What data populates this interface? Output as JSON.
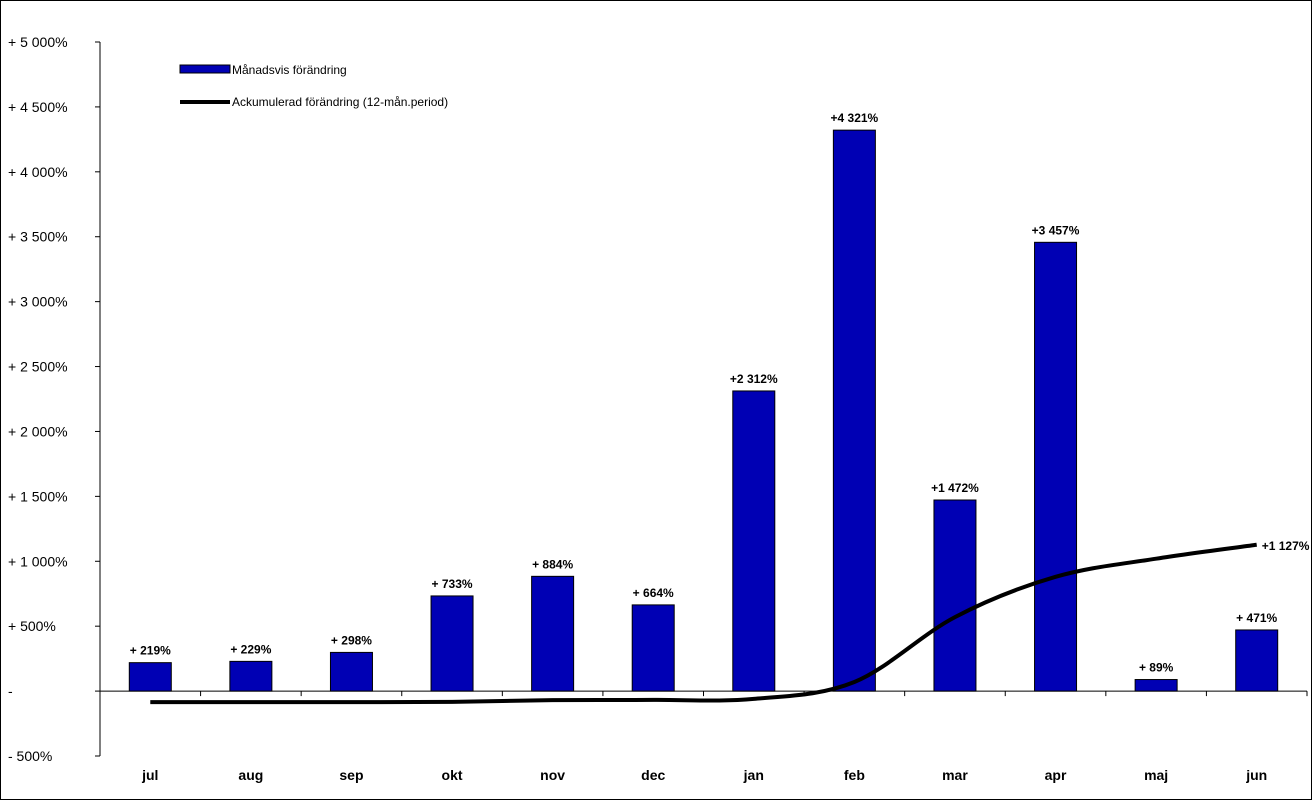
{
  "chart_data": {
    "type": "bar",
    "title": "",
    "xlabel": "",
    "ylabel": "",
    "categories": [
      "jul",
      "aug",
      "sep",
      "okt",
      "nov",
      "dec",
      "jan",
      "feb",
      "mar",
      "apr",
      "maj",
      "jun"
    ],
    "series": [
      {
        "name": "Månadsvis förändring",
        "type": "bar",
        "color": "#0000b4",
        "values": [
          219,
          229,
          298,
          733,
          884,
          664,
          2312,
          4321,
          1472,
          3457,
          89,
          471
        ],
        "labels": [
          "+ 219%",
          "+ 229%",
          "+ 298%",
          "+ 733%",
          "+ 884%",
          "+ 664%",
          "+2 312%",
          "+4 321%",
          "+1 472%",
          "+3 457%",
          "+ 89%",
          "+ 471%"
        ]
      },
      {
        "name": "Ackumulerad förändring (12-mån.period)",
        "type": "line",
        "color": "#000000",
        "values": [
          -85,
          -85,
          -85,
          -83,
          -70,
          -68,
          -60,
          70,
          570,
          880,
          1020,
          1127
        ],
        "last_label": "+1 127%"
      }
    ],
    "ylim": [
      -500,
      5000
    ],
    "yticks": [
      {
        "value": 5000,
        "label": "+ 5 000%"
      },
      {
        "value": 4500,
        "label": "+ 4 500%"
      },
      {
        "value": 4000,
        "label": "+ 4 000%"
      },
      {
        "value": 3500,
        "label": "+ 3 500%"
      },
      {
        "value": 3000,
        "label": "+ 3 000%"
      },
      {
        "value": 2500,
        "label": "+ 2 500%"
      },
      {
        "value": 2000,
        "label": "+ 2 000%"
      },
      {
        "value": 1500,
        "label": "+ 1 500%"
      },
      {
        "value": 1000,
        "label": "+ 1 000%"
      },
      {
        "value": 500,
        "label": "+  500%"
      },
      {
        "value": 0,
        "label": "-"
      },
      {
        "value": -500,
        "label": "- 500%"
      }
    ],
    "grid": false,
    "legend_position": "top-left"
  }
}
